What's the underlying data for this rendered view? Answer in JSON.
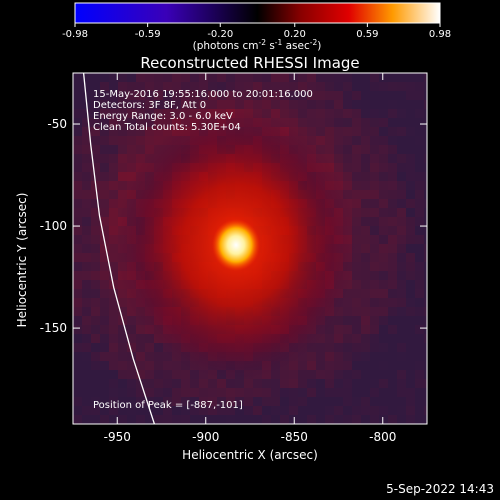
{
  "colorbar": {
    "ticks": [
      "-0.98",
      "-0.59",
      "-0.20",
      "0.20",
      "0.59",
      "0.98"
    ],
    "unit_main": "(photons cm",
    "unit_exp1": "-2",
    "unit_s": " s",
    "unit_exp2": "-1",
    "unit_asec": " asec",
    "unit_exp3": "-2",
    "unit_close": ")"
  },
  "title": "Reconstructed RHESSI Image",
  "info": {
    "line1": "15-May-2016 19:55:16.000 to 20:01:16.000",
    "line2": "Detectors: 3F 8F, Att 0",
    "line3": "Energy Range: 3.0 - 6.0 keV",
    "line4": "Clean     Total counts: 5.30E+04"
  },
  "peak_label": "Position of Peak = [-887,-101]",
  "timestamp": "5-Sep-2022 14:43",
  "chart_data": {
    "type": "heatmap",
    "xlabel": "Heliocentric X (arcsec)",
    "ylabel": "Heliocentric Y (arcsec)",
    "xlim": [
      -975,
      -775
    ],
    "ylim": [
      -197,
      -25
    ],
    "x_ticks": [
      -950,
      -900,
      -850,
      -800
    ],
    "y_ticks": [
      -50,
      -100,
      -150
    ],
    "x_tick_labels": [
      "-950",
      "-900",
      "-850",
      "-800"
    ],
    "y_tick_labels": [
      "-50",
      "-100",
      "-150"
    ],
    "peak": {
      "x": -887,
      "y": -101
    },
    "colorbar_range": [
      -0.98,
      0.98
    ],
    "colors": {
      "low": "#0000ff",
      "mid": "#000000",
      "high": "#ffffff"
    },
    "limb_curve": [
      [
        -929,
        -197
      ],
      [
        -941,
        -165
      ],
      [
        -952,
        -130
      ],
      [
        -960,
        -95
      ],
      [
        -965,
        -60
      ],
      [
        -969,
        -25
      ]
    ]
  }
}
